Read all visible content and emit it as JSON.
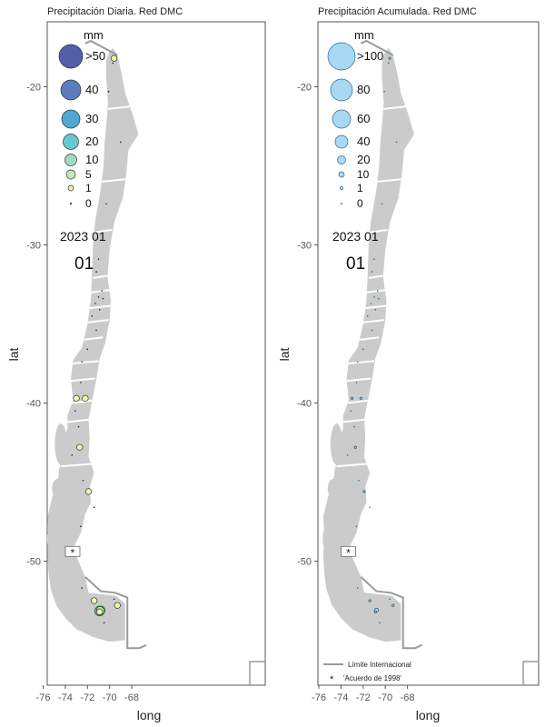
{
  "panels": [
    {
      "title": "Precipitación Diaria. Red DMC",
      "legend_title": "mm",
      "legend": [
        {
          "label": ">50",
          "color": "#5060a8"
        },
        {
          "label": "40",
          "color": "#5a7cbe"
        },
        {
          "label": "30",
          "color": "#4fa8cf"
        },
        {
          "label": "20",
          "color": "#66c9cf"
        },
        {
          "label": "10",
          "color": "#9fdcc8"
        },
        {
          "label": "5",
          "color": "#c8eab8"
        },
        {
          "label": "1",
          "color": "#edf7b0"
        },
        {
          "label": "0",
          "color": "#111111"
        }
      ],
      "date_label": "2023 01",
      "day_label": "01"
    },
    {
      "title": "Precipitación Acumulada. Red DMC",
      "legend_title": "mm",
      "legend": [
        {
          "label": ">100",
          "color": "#a9d8f2"
        },
        {
          "label": "80",
          "color": "#a9d8f2"
        },
        {
          "label": "60",
          "color": "#a9d8f2"
        },
        {
          "label": "40",
          "color": "#a9d8f2"
        },
        {
          "label": "20",
          "color": "#a9d8f2"
        },
        {
          "label": "10",
          "color": "#a9d8f2"
        },
        {
          "label": "1",
          "color": "#a9d8f2"
        },
        {
          "label": "0",
          "color": "#111111"
        }
      ],
      "date_label": "2023 01",
      "day_label": "01",
      "notes": {
        "line_label": "Límite Internacional",
        "star_symbol": "*",
        "star_label": "'Acuerdo de 1998'"
      }
    }
  ],
  "axes": {
    "xlabel": "long",
    "ylabel": "lat",
    "x_ticks": [
      "-76",
      "-74",
      "-72",
      "-70",
      "-68"
    ],
    "y_ticks": [
      "-20",
      "-30",
      "-40",
      "-50"
    ],
    "x_tick_values": [
      -76,
      -74,
      -72,
      -70,
      -68
    ],
    "y_tick_values": [
      -20,
      -30,
      -40,
      -50
    ]
  },
  "map_marker": "*",
  "colors": {
    "land": "#cbcbcb",
    "border": "#9a9a9a",
    "frame": "#555555"
  },
  "chart_data": {
    "type": "scatter",
    "x_range": [
      -77,
      -66.5
    ],
    "y_range": [
      -57.8,
      -17.3
    ],
    "xlabel": "long",
    "ylabel": "lat",
    "daily_points": [
      {
        "lon": -69.6,
        "lat": -18.2,
        "size_class": "1"
      },
      {
        "lon": -73.0,
        "lat": -39.7,
        "size_class": "1"
      },
      {
        "lon": -72.2,
        "lat": -39.7,
        "size_class": "1"
      },
      {
        "lon": -72.7,
        "lat": -42.8,
        "size_class": "1"
      },
      {
        "lon": -71.9,
        "lat": -45.6,
        "size_class": "1"
      },
      {
        "lon": -71.4,
        "lat": -52.5,
        "size_class": "1"
      },
      {
        "lon": -70.8,
        "lat": -53.1,
        "size_class": "5"
      },
      {
        "lon": -70.9,
        "lat": -53.2,
        "size_class": "1"
      },
      {
        "lon": -69.3,
        "lat": -52.8,
        "size_class": "1"
      }
    ]
  }
}
